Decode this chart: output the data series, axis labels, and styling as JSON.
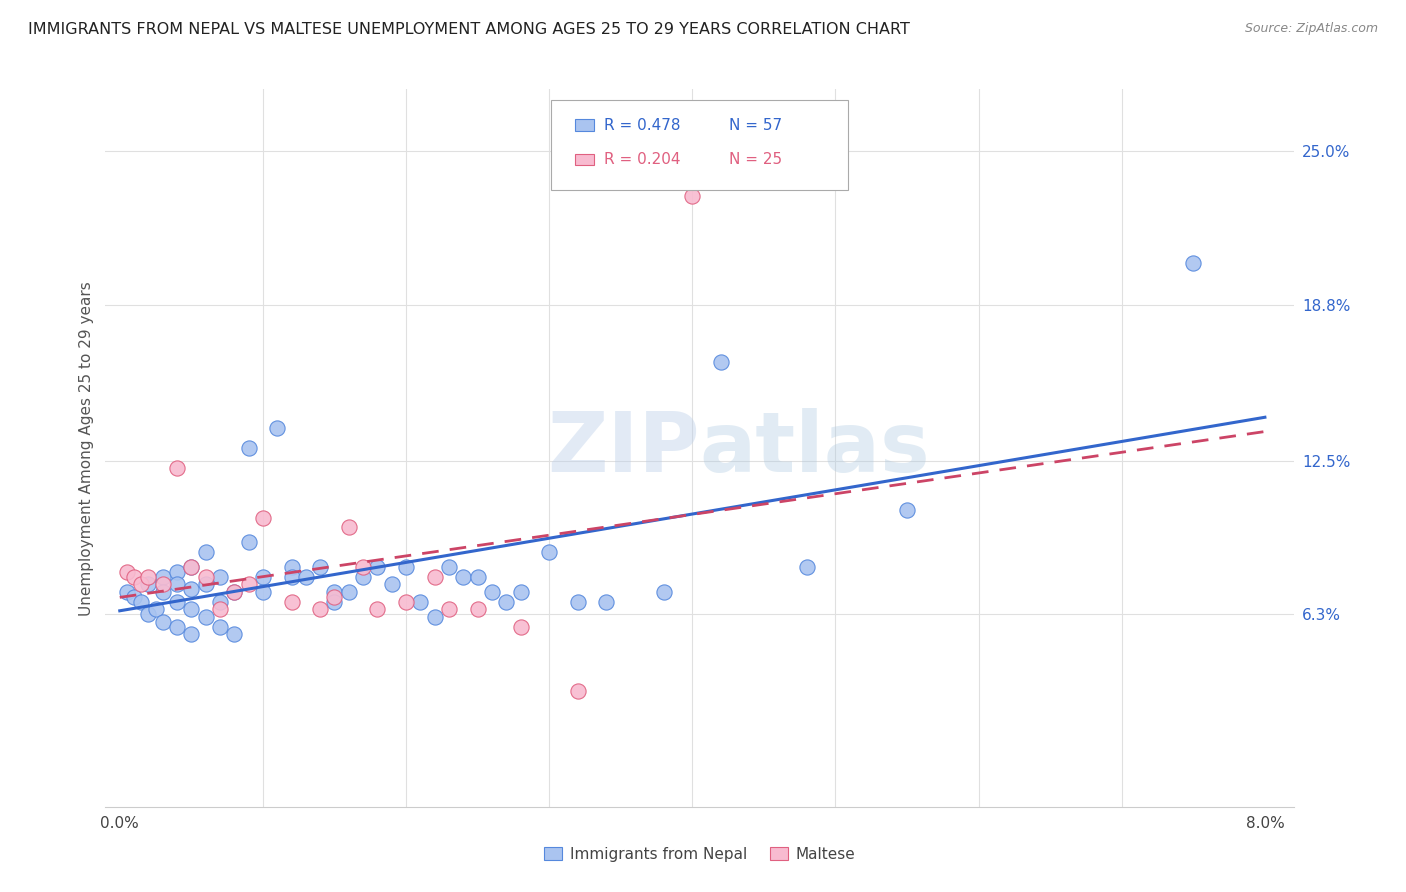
{
  "title": "IMMIGRANTS FROM NEPAL VS MALTESE UNEMPLOYMENT AMONG AGES 25 TO 29 YEARS CORRELATION CHART",
  "source": "Source: ZipAtlas.com",
  "ylabel": "Unemployment Among Ages 25 to 29 years",
  "y_ticks_right": [
    0.063,
    0.125,
    0.188,
    0.25
  ],
  "y_tick_labels_right": [
    "6.3%",
    "12.5%",
    "18.8%",
    "25.0%"
  ],
  "xlim": [
    -0.001,
    0.082
  ],
  "ylim": [
    -0.015,
    0.275
  ],
  "series1_color": "#aac4f0",
  "series1_edge": "#5588dd",
  "series2_color": "#f8bbd0",
  "series2_edge": "#e06080",
  "series1_line_color": "#3366cc",
  "series2_line_color": "#cc4466",
  "series1_label": "Immigrants from Nepal",
  "series2_label": "Maltese",
  "legend_R1": "R = 0.478",
  "legend_N1": "N = 57",
  "legend_R2": "R = 0.204",
  "legend_N2": "N = 25",
  "watermark": "ZIPatlas",
  "background_color": "#ffffff",
  "grid_color": "#e0e0e0",
  "nepal_x": [
    0.0005,
    0.001,
    0.0015,
    0.002,
    0.002,
    0.0025,
    0.003,
    0.003,
    0.003,
    0.004,
    0.004,
    0.004,
    0.004,
    0.005,
    0.005,
    0.005,
    0.005,
    0.006,
    0.006,
    0.006,
    0.007,
    0.007,
    0.007,
    0.008,
    0.008,
    0.009,
    0.009,
    0.01,
    0.01,
    0.011,
    0.012,
    0.012,
    0.013,
    0.014,
    0.015,
    0.015,
    0.016,
    0.017,
    0.018,
    0.019,
    0.02,
    0.021,
    0.022,
    0.023,
    0.024,
    0.025,
    0.026,
    0.027,
    0.028,
    0.03,
    0.032,
    0.034,
    0.038,
    0.042,
    0.048,
    0.055,
    0.075
  ],
  "nepal_y": [
    0.072,
    0.07,
    0.068,
    0.075,
    0.063,
    0.065,
    0.078,
    0.072,
    0.06,
    0.08,
    0.075,
    0.068,
    0.058,
    0.082,
    0.073,
    0.065,
    0.055,
    0.088,
    0.075,
    0.062,
    0.078,
    0.068,
    0.058,
    0.072,
    0.055,
    0.13,
    0.092,
    0.078,
    0.072,
    0.138,
    0.082,
    0.078,
    0.078,
    0.082,
    0.072,
    0.068,
    0.072,
    0.078,
    0.082,
    0.075,
    0.082,
    0.068,
    0.062,
    0.082,
    0.078,
    0.078,
    0.072,
    0.068,
    0.072,
    0.088,
    0.068,
    0.068,
    0.072,
    0.165,
    0.082,
    0.105,
    0.205
  ],
  "maltese_x": [
    0.0005,
    0.001,
    0.0015,
    0.002,
    0.003,
    0.004,
    0.005,
    0.006,
    0.007,
    0.008,
    0.009,
    0.01,
    0.012,
    0.014,
    0.015,
    0.016,
    0.017,
    0.018,
    0.02,
    0.022,
    0.023,
    0.025,
    0.028,
    0.032,
    0.04
  ],
  "maltese_y": [
    0.08,
    0.078,
    0.075,
    0.078,
    0.075,
    0.122,
    0.082,
    0.078,
    0.065,
    0.072,
    0.075,
    0.102,
    0.068,
    0.065,
    0.07,
    0.098,
    0.082,
    0.065,
    0.068,
    0.078,
    0.065,
    0.065,
    0.058,
    0.032,
    0.232
  ],
  "nepal_trend_x": [
    0.0,
    0.08
  ],
  "nepal_trend_y": [
    0.05,
    0.145
  ],
  "maltese_trend_x": [
    0.001,
    0.032
  ],
  "maltese_trend_y": [
    0.078,
    0.115
  ]
}
